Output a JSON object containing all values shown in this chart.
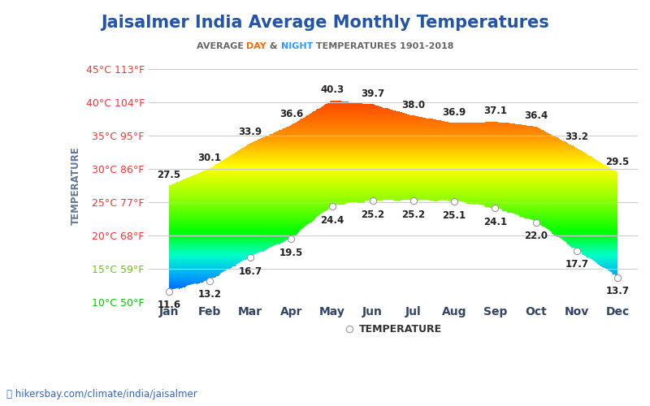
{
  "title": "Jaisalmer India Average Monthly Temperatures",
  "subtitle_parts": [
    "AVERAGE ",
    "DAY",
    " & ",
    "NIGHT",
    " TEMPERATURES 1901-2018"
  ],
  "subtitle_colors": [
    "#666666",
    "#ff6600",
    "#666666",
    "#3399ff",
    "#666666"
  ],
  "months": [
    "Jan",
    "Feb",
    "Mar",
    "Apr",
    "May",
    "Jun",
    "Jul",
    "Aug",
    "Sep",
    "Oct",
    "Nov",
    "Dec"
  ],
  "day_temps": [
    27.5,
    30.1,
    33.9,
    36.6,
    40.3,
    39.7,
    38.0,
    36.9,
    37.1,
    36.4,
    33.2,
    29.5
  ],
  "night_temps": [
    11.6,
    13.2,
    16.7,
    19.5,
    24.4,
    25.2,
    25.2,
    25.1,
    24.1,
    22.0,
    17.7,
    13.7
  ],
  "ylim_min": 10,
  "ylim_max": 45,
  "yticks": [
    10,
    15,
    20,
    25,
    30,
    35,
    40,
    45
  ],
  "ytick_labels": [
    "10°C 50°F",
    "15°C 59°F",
    "20°C 68°F",
    "25°C 77°F",
    "30°C 86°F",
    "35°C 95°F",
    "40°C 104°F",
    "45°C 113°F"
  ],
  "ytick_label_colors": [
    "#00cc00",
    "#66cc00",
    "#ff3333",
    "#ff3333",
    "#ff3333",
    "#ff3333",
    "#ff3333",
    "#ff3333"
  ],
  "ylabel": "TEMPERATURE",
  "background_color": "#ffffff",
  "grid_color": "#cccccc",
  "url_text": "hikersbay.com/climate/india/jaisalmer",
  "url_color": "#3366cc",
  "legend_text": "TEMPERATURE",
  "title_color": "#2255aa",
  "axis_label_color": "#334466",
  "month_label_color": "#334466"
}
